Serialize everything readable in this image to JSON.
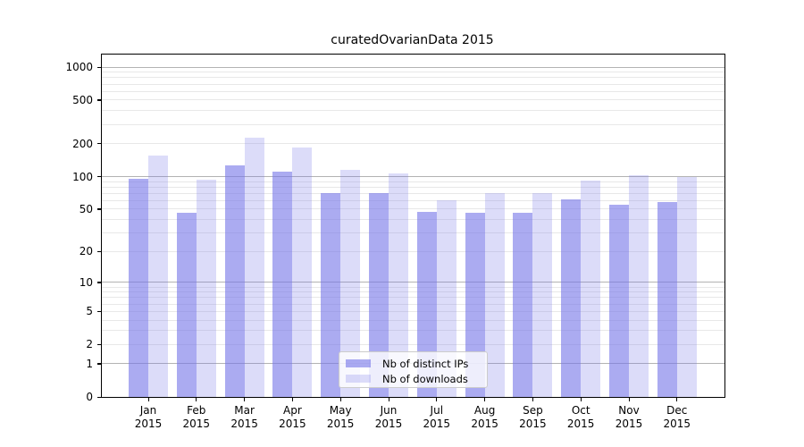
{
  "title": "curatedOvarianData 2015",
  "chart_data": {
    "type": "bar",
    "title": "curatedOvarianData 2015",
    "xlabel": "",
    "ylabel": "",
    "categories": [
      "Jan 2015",
      "Feb 2015",
      "Mar 2015",
      "Apr 2015",
      "May 2015",
      "Jun 2015",
      "Jul 2015",
      "Aug 2015",
      "Sep 2015",
      "Oct 2015",
      "Nov 2015",
      "Dec 2015"
    ],
    "series": [
      {
        "name": "Nb of distinct IPs",
        "color": "rgba(120,120,232,0.62)",
        "values": [
          95,
          46,
          126,
          110,
          70,
          71,
          47,
          46,
          46,
          62,
          55,
          58
        ]
      },
      {
        "name": "Nb of downloads",
        "color": "rgba(120,120,232,0.26)",
        "values": [
          157,
          94,
          228,
          184,
          115,
          106,
          61,
          70,
          70,
          91,
          102,
          100
        ]
      }
    ],
    "yscale": "log1p",
    "yticks": [
      0,
      1,
      2,
      5,
      10,
      20,
      50,
      100,
      200,
      500,
      1000
    ],
    "ylim": [
      0,
      1300
    ],
    "grid": true,
    "grid_minor_values": [
      2,
      3,
      4,
      5,
      6,
      7,
      8,
      9,
      20,
      30,
      40,
      50,
      60,
      70,
      80,
      90,
      200,
      300,
      400,
      500,
      600,
      700,
      800,
      900
    ],
    "grid_major_values": [
      1,
      10,
      100,
      1000
    ],
    "legend_position": "lower center"
  },
  "colors": {
    "grid_major": "#b3b3b3",
    "grid_minor": "#e8e8e8",
    "axis": "#000000",
    "legend_border": "#cccccc",
    "legend_bg": "rgba(255,255,255,0.8)"
  }
}
